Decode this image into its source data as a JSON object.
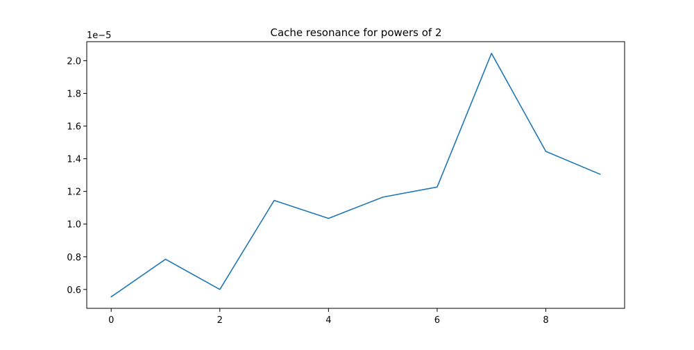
{
  "chart_data": {
    "type": "line",
    "title": "Cache resonance for powers of 2",
    "xlabel": "",
    "ylabel": "",
    "y_offset_label": "1e−5",
    "x": [
      0,
      1,
      2,
      3,
      4,
      5,
      6,
      7,
      8,
      9
    ],
    "series": [
      {
        "values": [
          5.55e-06,
          7.85e-06,
          6e-06,
          1.145e-05,
          1.035e-05,
          1.165e-05,
          1.227e-05,
          2.045e-05,
          1.445e-05,
          1.305e-05
        ],
        "color": "#1f77b4"
      }
    ],
    "xlim": [
      -0.45,
      9.45
    ],
    "ylim": [
      4.845e-06,
      2.1165e-05
    ],
    "x_ticks": [
      0,
      2,
      4,
      6,
      8
    ],
    "x_tick_labels": [
      "0",
      "2",
      "4",
      "6",
      "8"
    ],
    "y_ticks": [
      6e-06,
      8e-06,
      1e-05,
      1.2e-05,
      1.4e-05,
      1.6e-05,
      1.8e-05,
      2e-05
    ],
    "y_tick_labels": [
      "0.6",
      "0.8",
      "1.0",
      "1.2",
      "1.4",
      "1.6",
      "1.8",
      "2.0"
    ],
    "grid": false,
    "legend": "none"
  }
}
